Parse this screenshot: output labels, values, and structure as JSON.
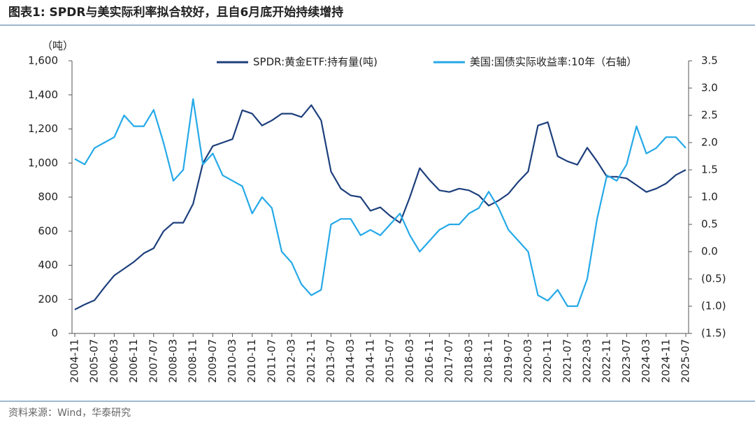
{
  "chart_data": {
    "type": "line",
    "title": "图表1:  SPDR与美实际利率拟合较好，且自6月底开始持续增持",
    "source": "资料来源：Wind，华泰研究",
    "ylabel": "（吨）",
    "x": [
      "2004-11",
      "2005-03",
      "2005-07",
      "2005-11",
      "2006-03",
      "2006-07",
      "2006-11",
      "2007-03",
      "2007-07",
      "2007-11",
      "2008-03",
      "2008-07",
      "2008-11",
      "2009-03",
      "2009-07",
      "2009-11",
      "2010-03",
      "2010-07",
      "2010-11",
      "2011-03",
      "2011-07",
      "2011-11",
      "2012-03",
      "2012-07",
      "2012-11",
      "2013-03",
      "2013-07",
      "2013-11",
      "2014-03",
      "2014-07",
      "2014-11",
      "2015-03",
      "2015-07",
      "2015-11",
      "2016-03",
      "2016-07",
      "2016-11",
      "2017-03",
      "2017-07",
      "2017-11",
      "2018-03",
      "2018-07",
      "2018-11",
      "2019-03",
      "2019-07",
      "2019-11",
      "2020-03",
      "2020-07",
      "2020-11",
      "2021-03",
      "2021-07",
      "2021-11",
      "2022-03",
      "2022-07",
      "2022-11",
      "2023-03",
      "2023-07",
      "2023-11",
      "2024-03",
      "2024-07",
      "2024-11",
      "2025-03",
      "2025-07"
    ],
    "xticks": [
      "2004-11",
      "2005-07",
      "2006-03",
      "2006-11",
      "2007-07",
      "2008-03",
      "2008-11",
      "2009-07",
      "2010-03",
      "2010-11",
      "2011-07",
      "2012-03",
      "2012-11",
      "2013-07",
      "2014-03",
      "2014-11",
      "2015-07",
      "2016-03",
      "2016-11",
      "2017-07",
      "2018-03",
      "2018-11",
      "2019-07",
      "2020-03",
      "2020-11",
      "2021-07",
      "2022-03",
      "2022-11",
      "2023-07",
      "2024-03",
      "2024-11",
      "2025-07"
    ],
    "series": [
      {
        "name": "SPDR:黄金ETF:持有量(吨)",
        "color": "#1d3f7c",
        "axis": "y",
        "values": [
          140,
          170,
          195,
          270,
          340,
          380,
          420,
          470,
          500,
          600,
          650,
          650,
          760,
          1000,
          1100,
          1120,
          1140,
          1310,
          1290,
          1220,
          1250,
          1290,
          1290,
          1270,
          1340,
          1250,
          950,
          850,
          810,
          800,
          720,
          740,
          690,
          650,
          800,
          970,
          900,
          840,
          830,
          850,
          840,
          810,
          750,
          780,
          820,
          890,
          950,
          1220,
          1240,
          1040,
          1010,
          990,
          1090,
          1010,
          920,
          920,
          910,
          870,
          830,
          850,
          880,
          930,
          960
        ]
      },
      {
        "name": "美国:国债实际收益率:10年（右轴）",
        "color": "#25a9e8",
        "axis": "y2",
        "values": [
          1.7,
          1.6,
          1.9,
          2.0,
          2.1,
          2.5,
          2.3,
          2.3,
          2.6,
          2.0,
          1.3,
          1.5,
          2.8,
          1.6,
          1.8,
          1.4,
          1.3,
          1.2,
          0.7,
          1.0,
          0.8,
          0.0,
          -0.2,
          -0.6,
          -0.8,
          -0.7,
          0.5,
          0.6,
          0.6,
          0.3,
          0.4,
          0.3,
          0.5,
          0.7,
          0.3,
          0.0,
          0.2,
          0.4,
          0.5,
          0.5,
          0.7,
          0.8,
          1.1,
          0.8,
          0.4,
          0.2,
          0.0,
          -0.8,
          -0.9,
          -0.7,
          -1.0,
          -1.0,
          -0.5,
          0.6,
          1.4,
          1.3,
          1.6,
          2.3,
          1.8,
          1.9,
          2.1,
          2.1,
          1.9
        ]
      }
    ],
    "ylim": [
      0,
      1600
    ],
    "yticks": [
      0,
      200,
      400,
      600,
      800,
      {
        "value": 1000,
        "label": "1,000"
      },
      {
        "value": 1200,
        "label": "1,200"
      },
      {
        "value": 1400,
        "label": "1,400"
      },
      {
        "value": 1600,
        "label": "1,600"
      }
    ],
    "y2lim": [
      -1.5,
      3.5
    ],
    "y2ticks": [
      {
        "value": -1.5,
        "label": "(1.5)"
      },
      {
        "value": -1.0,
        "label": "(1.0)"
      },
      {
        "value": -0.5,
        "label": "(0.5)"
      },
      {
        "value": 0,
        "label": "0.0"
      },
      0.5,
      {
        "value": 1.0,
        "label": "1.0"
      },
      1.5,
      {
        "value": 2.0,
        "label": "2.0"
      },
      2.5,
      {
        "value": 3.0,
        "label": "3.0"
      },
      3.5
    ],
    "grid": false
  }
}
